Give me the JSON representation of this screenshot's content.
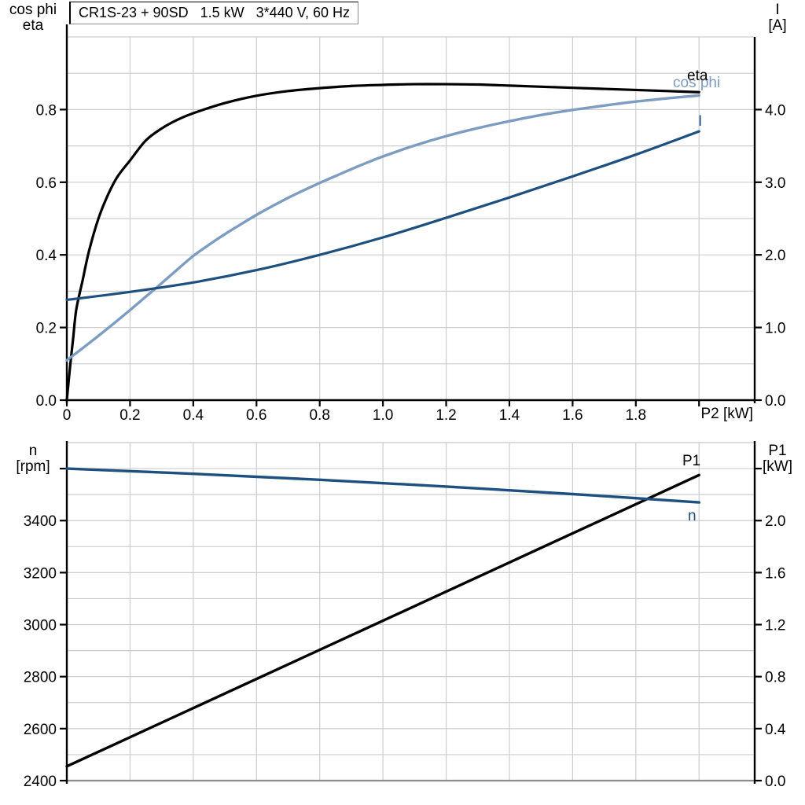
{
  "title": "CR1S-23 + 90SD   1.5 kW   3*440 V, 60 Hz",
  "axis_titles": {
    "top_left_1": "cos phi",
    "top_left_2": "eta",
    "top_right_1": "I",
    "top_right_2": "[A]",
    "top_x": "P2 [kW]",
    "bottom_left_1": "n",
    "bottom_left_2": "[rpm]",
    "bottom_right_1": "P1",
    "bottom_right_2": "[kW]"
  },
  "curve_labels": {
    "eta": "eta",
    "cos_phi": "cos phi",
    "current": "I",
    "p1": "P1",
    "n": "n"
  },
  "colors": {
    "eta": "#000000",
    "cos_phi": "#7d9cc2",
    "current": "#1d4f7f",
    "p1": "#000000",
    "n": "#1d4f7f",
    "grid": "#cdcdcd",
    "axis": "#000000",
    "frame_gray": "#8c8c8c"
  },
  "chart_data": [
    {
      "type": "line",
      "title": "CR1S-23 + 90SD  1.5 kW  3*440 V, 60 Hz",
      "xlabel": "P2 [kW]",
      "x_max_plot": 2.176,
      "x_tick_values": [
        0,
        0.2,
        0.4,
        0.6,
        0.8,
        1.0,
        1.2,
        1.4,
        1.6,
        1.8,
        2.0
      ],
      "x_tick_labels": [
        "0",
        "0.2",
        "0.4",
        "0.6",
        "0.8",
        "1.0",
        "1.2",
        "1.4",
        "1.6",
        "1.8",
        ""
      ],
      "v_grid": [
        0.2,
        0.4,
        0.6,
        0.8,
        1.0,
        1.2,
        1.4,
        1.6,
        1.8,
        2.0
      ],
      "left_axis": {
        "title": "cos phi / eta",
        "range": [
          0,
          1.0
        ],
        "tick_values": [
          0,
          0.2,
          0.4,
          0.6,
          0.8
        ],
        "tick_labels": [
          "0.0",
          "0.2",
          "0.4",
          "0.6",
          "0.8"
        ],
        "grid_values": [
          0.1,
          0.2,
          0.3,
          0.4,
          0.5,
          0.6,
          0.7,
          0.8,
          0.9,
          1.0
        ]
      },
      "right_axis": {
        "title": "I [A]",
        "range": [
          0,
          5.0
        ],
        "tick_values": [
          0,
          1,
          2,
          3,
          4
        ],
        "tick_labels": [
          "0.0",
          "1.0",
          "2.0",
          "3.0",
          "4.0"
        ]
      },
      "series": [
        {
          "name": "eta",
          "axis": "left",
          "color_key": "eta",
          "width": 3.2,
          "points": [
            [
              0,
              0
            ],
            [
              0.01,
              0.09
            ],
            [
              0.02,
              0.17
            ],
            [
              0.03,
              0.25
            ],
            [
              0.05,
              0.33
            ],
            [
              0.07,
              0.41
            ],
            [
              0.1,
              0.5
            ],
            [
              0.13,
              0.565
            ],
            [
              0.16,
              0.615
            ],
            [
              0.2,
              0.66
            ],
            [
              0.25,
              0.715
            ],
            [
              0.3,
              0.748
            ],
            [
              0.35,
              0.772
            ],
            [
              0.4,
              0.79
            ],
            [
              0.5,
              0.818
            ],
            [
              0.6,
              0.838
            ],
            [
              0.7,
              0.851
            ],
            [
              0.8,
              0.859
            ],
            [
              0.9,
              0.865
            ],
            [
              1,
              0.868
            ],
            [
              1.1,
              0.87
            ],
            [
              1.2,
              0.87
            ],
            [
              1.3,
              0.869
            ],
            [
              1.4,
              0.866
            ],
            [
              1.5,
              0.863
            ],
            [
              1.6,
              0.86
            ],
            [
              1.7,
              0.857
            ],
            [
              1.8,
              0.854
            ],
            [
              1.9,
              0.851
            ],
            [
              2,
              0.848
            ]
          ]
        },
        {
          "name": "cos phi",
          "axis": "left",
          "color_key": "cos_phi",
          "width": 3.4,
          "points": [
            [
              0,
              0.11
            ],
            [
              0.05,
              0.143
            ],
            [
              0.1,
              0.177
            ],
            [
              0.15,
              0.212
            ],
            [
              0.2,
              0.248
            ],
            [
              0.25,
              0.285
            ],
            [
              0.3,
              0.322
            ],
            [
              0.35,
              0.36
            ],
            [
              0.4,
              0.397
            ],
            [
              0.45,
              0.428
            ],
            [
              0.5,
              0.457
            ],
            [
              0.55,
              0.484
            ],
            [
              0.6,
              0.51
            ],
            [
              0.65,
              0.534
            ],
            [
              0.7,
              0.557
            ],
            [
              0.75,
              0.578
            ],
            [
              0.8,
              0.598
            ],
            [
              0.85,
              0.617
            ],
            [
              0.9,
              0.636
            ],
            [
              0.95,
              0.654
            ],
            [
              1,
              0.671
            ],
            [
              1.1,
              0.701
            ],
            [
              1.2,
              0.727
            ],
            [
              1.3,
              0.749
            ],
            [
              1.4,
              0.768
            ],
            [
              1.5,
              0.785
            ],
            [
              1.6,
              0.799
            ],
            [
              1.7,
              0.811
            ],
            [
              1.8,
              0.822
            ],
            [
              1.9,
              0.831
            ],
            [
              2,
              0.839
            ]
          ]
        },
        {
          "name": "I",
          "axis": "right",
          "color_key": "current",
          "width": 3.2,
          "points": [
            [
              0,
              1.38
            ],
            [
              0.2,
              1.49
            ],
            [
              0.4,
              1.62
            ],
            [
              0.6,
              1.79
            ],
            [
              0.8,
              2.0
            ],
            [
              1.0,
              2.24
            ],
            [
              1.2,
              2.51
            ],
            [
              1.4,
              2.79
            ],
            [
              1.6,
              3.08
            ],
            [
              1.8,
              3.38
            ],
            [
              2.0,
              3.7
            ]
          ]
        }
      ]
    },
    {
      "type": "line",
      "title": "",
      "xlabel": "",
      "x_max_plot": 2.176,
      "x_tick_values": [],
      "x_tick_labels": [],
      "v_grid": [
        0.2,
        0.4,
        0.6,
        0.8,
        1.0,
        1.2,
        1.4,
        1.6,
        1.8,
        2.0
      ],
      "left_axis": {
        "title": "n [rpm]",
        "range": [
          2400,
          3700
        ],
        "tick_values": [
          2400,
          2600,
          2800,
          3000,
          3200,
          3400,
          3600
        ],
        "tick_labels": [
          "2400",
          "2600",
          "2800",
          "3000",
          "3200",
          "3400",
          ""
        ],
        "grid_values": [
          2500,
          2600,
          2700,
          2800,
          2900,
          3000,
          3100,
          3200,
          3300,
          3400,
          3500,
          3600,
          3700
        ]
      },
      "right_axis": {
        "title": "P1 [kW]",
        "range": [
          0,
          2.6
        ],
        "tick_values": [
          0,
          0.4,
          0.8,
          1.2,
          1.6,
          2.0,
          2.4
        ],
        "tick_labels": [
          "0.0",
          "0.4",
          "0.8",
          "1.2",
          "1.6",
          "2.0",
          ""
        ]
      },
      "series": [
        {
          "name": "P1",
          "axis": "right",
          "color_key": "p1",
          "width": 3.4,
          "points": [
            [
              0,
              0.11
            ],
            [
              0.5,
              0.67
            ],
            [
              1,
              1.23
            ],
            [
              1.5,
              1.79
            ],
            [
              2,
              2.35
            ]
          ]
        },
        {
          "name": "n",
          "axis": "left",
          "color_key": "n",
          "width": 3.4,
          "points": [
            [
              0,
              3600
            ],
            [
              0.4,
              3580
            ],
            [
              0.8,
              3557
            ],
            [
              1.2,
              3531
            ],
            [
              1.6,
              3502
            ],
            [
              2,
              3470
            ]
          ]
        }
      ]
    }
  ]
}
